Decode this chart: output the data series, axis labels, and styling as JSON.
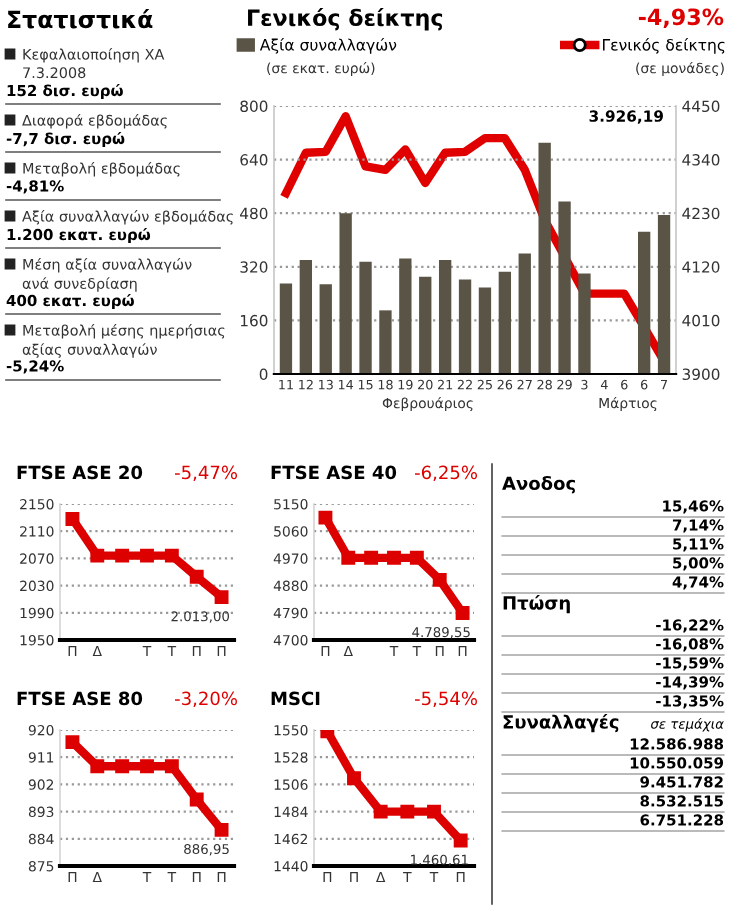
{
  "chart_data": [
    {
      "type": "other",
      "title": "Στατιστικά",
      "annotations": [
        "Κεφαλαιοποίηση ΧΑ\n7.3.2008",
        "152 δισ. ευρώ",
        "Διαφορά εβδομάδας",
        "-7,7 δισ. ευρώ",
        "Μεταβολή εβδομάδας",
        "-4,81%",
        "Αξία συναλλαγών εβδομάδας",
        "1.200 εκατ. ευρώ",
        "Μέση αξία συναλλαγών\nανά συνεδρίαση",
        "400 εκατ. ευρώ",
        "Μεταβολή μέσης ημερήσιας\nαξίας συναλλαγών",
        "-5,24%"
      ]
    },
    {
      "type": "bar",
      "title": "Γενικός δείκτης",
      "subtitle": "-4,93%",
      "ylabel": "(σε εκατ. ευρώ)",
      "y2label": "(σε μονάδες)",
      "legend": "top",
      "grid": "y",
      "categories": [
        "11",
        "12",
        "13",
        "14",
        "15",
        "18",
        "19",
        "20",
        "21",
        "22",
        "25",
        "26",
        "27",
        "28",
        "29",
        "3",
        "4",
        "6",
        "6",
        "7"
      ],
      "series": [
        {
          "name": "Αξία συναλλαγών",
          "type": "bar",
          "color": "#5a5447",
          "values": [
            270,
            340,
            268,
            480,
            335,
            190,
            345,
            290,
            340,
            282,
            258,
            305,
            360,
            690,
            515,
            300,
            null,
            null,
            425,
            475
          ]
        },
        {
          "name": "Γενικός δείκτης",
          "type": "line",
          "axis": "y2",
          "color": "#e00000",
          "values": [
            4271,
            4354,
            4356,
            4429,
            4326,
            4319,
            4361,
            4292,
            4354,
            4356,
            4384,
            4384,
            4319,
            4216,
            4141,
            4065,
            4065,
            4065,
            3996,
            3926
          ]
        }
      ],
      "ylim": [
        0,
        800
      ],
      "yticks": [
        0,
        160,
        320,
        480,
        640,
        800
      ],
      "y2lim": [
        3900,
        4450
      ],
      "y2ticks": [
        3900,
        4010,
        4120,
        4230,
        4340,
        4450
      ],
      "annotations": [
        "3.926,19",
        "Φεβρουάριος",
        "Μάρτιος"
      ]
    },
    {
      "type": "line",
      "title": "FTSE ASE 20",
      "subtitle": "-5,47%",
      "categories": [
        "Π",
        "Δ",
        null,
        "Τ",
        "Τ",
        "Π",
        "Π"
      ],
      "series": [
        {
          "color": "#dd0000",
          "values": [
            2128,
            2074,
            2074,
            2074,
            2074,
            2043,
            2013
          ],
          "value_labels": [
            null,
            null,
            null,
            null,
            null,
            null,
            "2.013,00"
          ]
        }
      ],
      "ylim": [
        1950,
        2150
      ],
      "yticks": [
        1950,
        1990,
        2030,
        2070,
        2110,
        2150
      ],
      "grid": "y",
      "marker": "square"
    },
    {
      "type": "line",
      "title": "FTSE ASE 40",
      "subtitle": "-6,25%",
      "categories": [
        "Π",
        "Δ",
        null,
        "Τ",
        "Τ",
        "Π",
        "Π"
      ],
      "series": [
        {
          "color": "#dd0000",
          "values": [
            5105,
            4972,
            4972,
            4972,
            4972,
            4899,
            4789.55
          ],
          "value_labels": [
            null,
            null,
            null,
            null,
            null,
            null,
            "4.789,55"
          ]
        }
      ],
      "ylim": [
        4700,
        5150
      ],
      "yticks": [
        4700,
        4790,
        4880,
        4970,
        5060,
        5150
      ],
      "grid": "y",
      "marker": "square"
    },
    {
      "type": "line",
      "title": "FTSE ASE 80",
      "subtitle": "-3,20%",
      "categories": [
        "Π",
        "Δ",
        null,
        "Τ",
        "Τ",
        "Π",
        "Π"
      ],
      "series": [
        {
          "color": "#dd0000",
          "values": [
            916,
            908,
            908,
            908,
            908,
            897,
            886.95
          ],
          "value_labels": [
            null,
            null,
            null,
            null,
            null,
            null,
            "886,95"
          ]
        }
      ],
      "ylim": [
        875,
        920
      ],
      "yticks": [
        875,
        884,
        893,
        902,
        911,
        920
      ],
      "grid": "y",
      "marker": "square"
    },
    {
      "type": "line",
      "title": "MSCI",
      "subtitle": "-5,54%",
      "categories": [
        "Π",
        "Π",
        "Δ",
        "Τ",
        "Τ",
        "Π"
      ],
      "series": [
        {
          "color": "#dd0000",
          "values": [
            1549,
            1511,
            1484,
            1484,
            1484,
            1460.61
          ],
          "value_labels": [
            null,
            null,
            null,
            null,
            null,
            "1.460,61"
          ]
        }
      ],
      "ylim": [
        1440,
        1550
      ],
      "yticks": [
        1440,
        1462,
        1484,
        1506,
        1528,
        1550
      ],
      "grid": "y",
      "marker": "square"
    },
    {
      "type": "other",
      "annotations": [
        "Ανοδος",
        "Πτώση",
        "Συναλλαγές",
        "σε τεμάχια"
      ],
      "categories": [
        null,
        null,
        null,
        null,
        null,
        null,
        null,
        null,
        null,
        null,
        null,
        null,
        null,
        null,
        null
      ],
      "value_labels": [
        "15,46%",
        "7,14%",
        "5,11%",
        "5,00%",
        "4,74%",
        "-16,22%",
        "-16,08%",
        "-15,59%",
        "-14,39%",
        "-13,35%",
        "12.586.988",
        "10.550.059",
        "9.451.782",
        "8.532.515",
        "6.751.228"
      ]
    }
  ]
}
